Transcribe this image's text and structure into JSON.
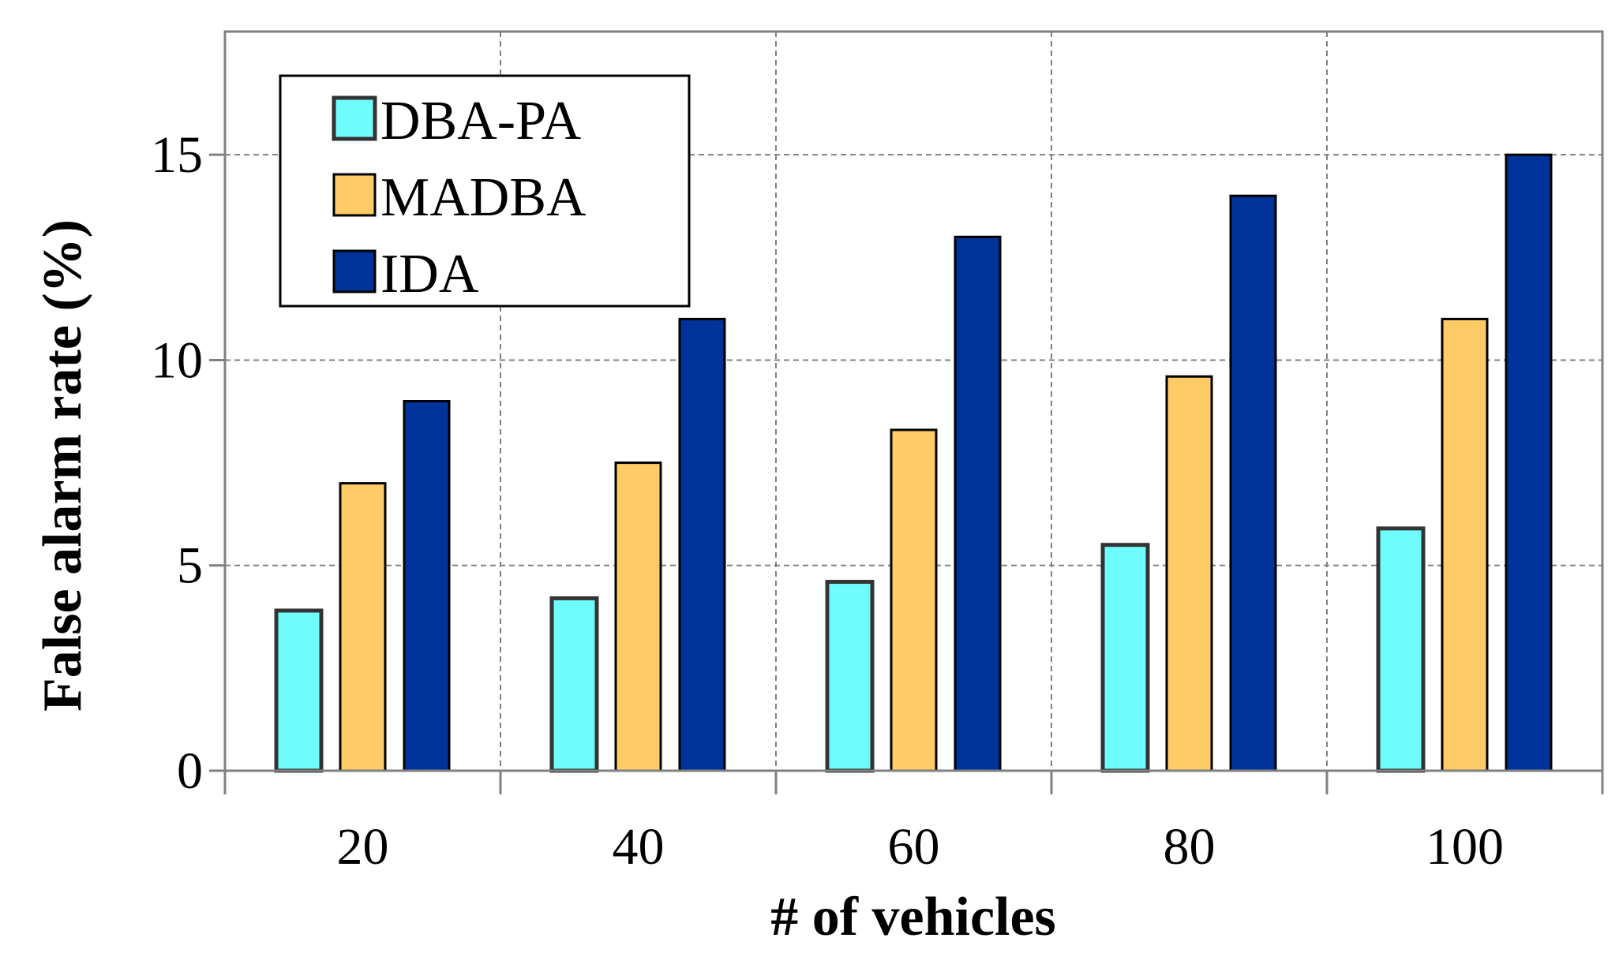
{
  "chart_data": {
    "type": "bar",
    "title": "",
    "xlabel": "# of vehicles",
    "ylabel": "False alarm rate (%)",
    "categories": [
      "20",
      "40",
      "60",
      "80",
      "100"
    ],
    "series": [
      {
        "name": "DBA-PA",
        "color": "#6ffcfc",
        "values": [
          3.9,
          4.2,
          4.6,
          5.5,
          5.9
        ]
      },
      {
        "name": "MADBA",
        "color": "#fecb66",
        "values": [
          7.0,
          7.5,
          8.3,
          9.6,
          11.0
        ]
      },
      {
        "name": "IDA",
        "color": "#003399",
        "values": [
          9.0,
          11.0,
          13.0,
          14.0,
          15.0
        ]
      }
    ],
    "ylim": [
      0,
      18
    ],
    "yticks": [
      0,
      5,
      10,
      15
    ],
    "grid": true,
    "legend_position": "top-left"
  }
}
